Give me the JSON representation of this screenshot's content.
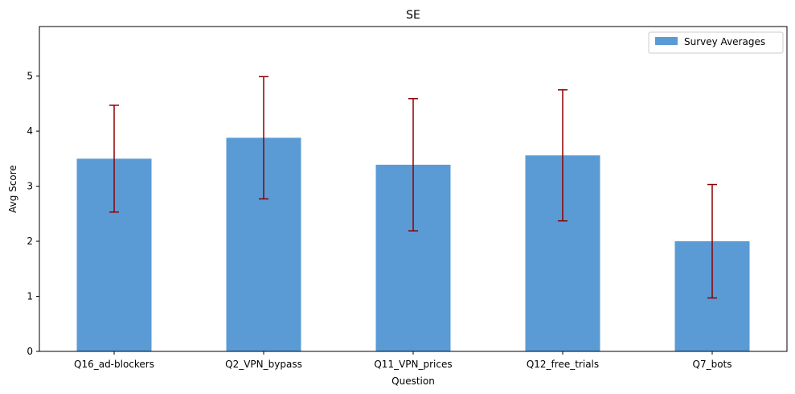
{
  "chart_data": {
    "type": "bar",
    "title": "SE",
    "xlabel": "Question",
    "ylabel": "Avg Score",
    "categories": [
      "Q16_ad-blockers",
      "Q2_VPN_bypass",
      "Q11_VPN_prices",
      "Q12_free_trials",
      "Q7_bots"
    ],
    "series": [
      {
        "name": "Survey Averages",
        "values": [
          3.5,
          3.88,
          3.39,
          3.56,
          2.0
        ],
        "error": [
          0.97,
          1.11,
          1.2,
          1.19,
          1.03
        ]
      }
    ],
    "ylim": [
      0,
      5.9
    ],
    "yticks": [
      0,
      1,
      2,
      3,
      4,
      5
    ],
    "grid": false,
    "legend_position": "top-right",
    "colors": {
      "bar": "#5b9bd5",
      "error_bar": "#8b0000"
    }
  }
}
